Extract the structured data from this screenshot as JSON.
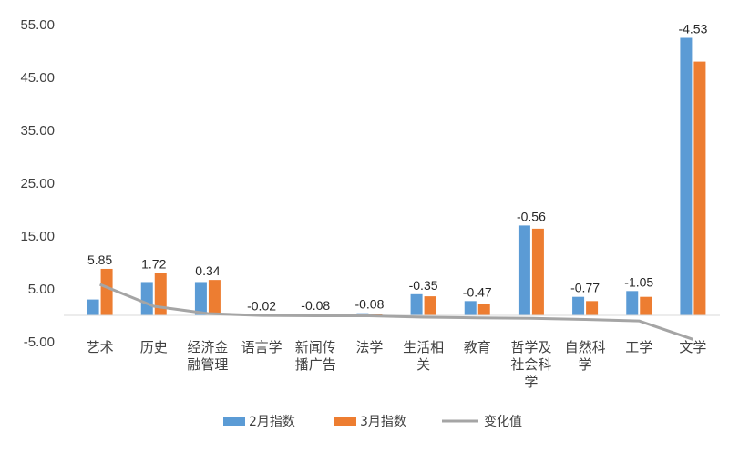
{
  "chart_data": {
    "type": "bar",
    "categories": [
      [
        "艺术"
      ],
      [
        "历史"
      ],
      [
        "经济金",
        "融管理"
      ],
      [
        "语言学"
      ],
      [
        "新闻传",
        "播广告"
      ],
      [
        "法学"
      ],
      [
        "生活相",
        "关"
      ],
      [
        "教育"
      ],
      [
        "哲学及",
        "社会科",
        "学"
      ],
      [
        "自然科",
        "学"
      ],
      [
        "工学"
      ],
      [
        "文学"
      ]
    ],
    "series": [
      {
        "name": "2月指数",
        "kind": "bar",
        "color": "#5B9BD5",
        "values": [
          3.0,
          6.3,
          6.3,
          0.1,
          0.2,
          0.4,
          4.0,
          2.7,
          17.0,
          3.5,
          4.6,
          52.5
        ]
      },
      {
        "name": "3月指数",
        "kind": "bar",
        "color": "#ED7D31",
        "values": [
          8.8,
          8.0,
          6.7,
          0.1,
          0.1,
          0.3,
          3.6,
          2.2,
          16.4,
          2.7,
          3.5,
          48.0
        ]
      },
      {
        "name": "变化值",
        "kind": "line",
        "color": "#A5A5A5",
        "values": [
          5.85,
          1.72,
          0.34,
          -0.02,
          -0.08,
          -0.08,
          -0.35,
          -0.47,
          -0.56,
          -0.77,
          -1.05,
          -4.53
        ]
      }
    ],
    "data_labels": [
      "5.85",
      "1.72",
      "0.34",
      "-0.02",
      "-0.08",
      "-0.08",
      "-0.35",
      "-0.47",
      "-0.56",
      "-0.77",
      "-1.05",
      "-4.53"
    ],
    "y_ticks": [
      "55.00",
      "45.00",
      "35.00",
      "25.00",
      "15.00",
      "5.00",
      "-5.00"
    ],
    "y_tick_values": [
      55,
      45,
      35,
      25,
      15,
      5,
      -5
    ],
    "ylim": [
      -5,
      55
    ],
    "grid": false,
    "legend_position": "bottom"
  }
}
